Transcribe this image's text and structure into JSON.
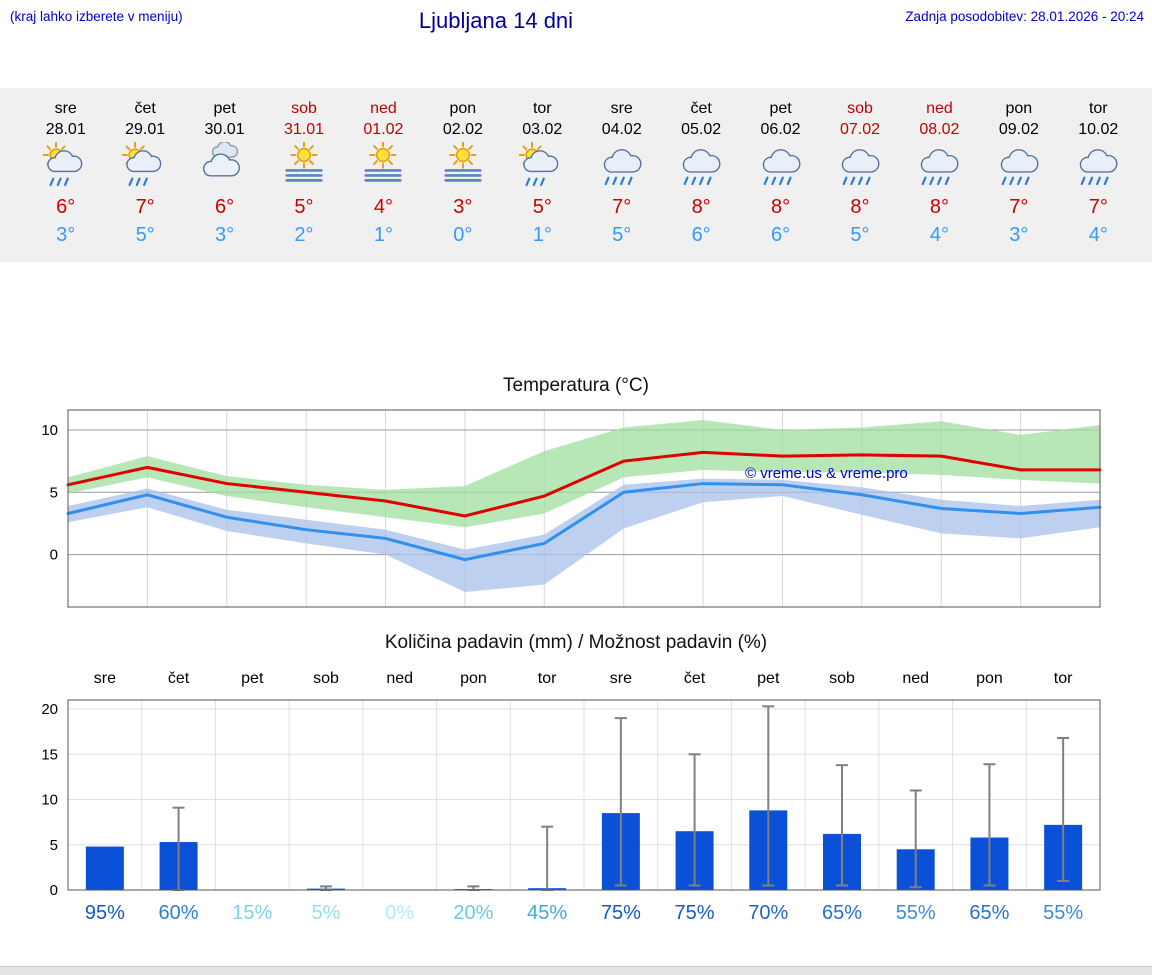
{
  "header": {
    "note": "(kraj lahko izberete v meniju)",
    "title": "Ljubljana 14 dni",
    "updated": "Zadnja posodobitev: 28.01.2026 - 20:24"
  },
  "colors": {
    "accent_blue": "#0000cc",
    "title_blue": "#000099",
    "high_temp_red": "#cc0000",
    "low_temp_blue": "#3399ff",
    "weekend_red": "#c00000",
    "bar_blue": "#0b51d8",
    "temp_high_line": "#e10000",
    "temp_low_line": "#2f90f0",
    "band_green": "#9fdf9f",
    "band_blue": "#a8c0ea",
    "watermark_blue": "#0000cc",
    "whisker_gray": "#808080"
  },
  "forecast": {
    "days": [
      {
        "name": "sre",
        "date": "28.01",
        "weekend": false,
        "icon": "sun-cloud-rain",
        "high": "6°",
        "low": "3°"
      },
      {
        "name": "čet",
        "date": "29.01",
        "weekend": false,
        "icon": "sun-cloud-rain",
        "high": "7°",
        "low": "5°"
      },
      {
        "name": "pet",
        "date": "30.01",
        "weekend": false,
        "icon": "clouds",
        "high": "6°",
        "low": "3°"
      },
      {
        "name": "sob",
        "date": "31.01",
        "weekend": true,
        "icon": "sun-fog",
        "high": "5°",
        "low": "2°"
      },
      {
        "name": "ned",
        "date": "01.02",
        "weekend": true,
        "icon": "sun-fog",
        "high": "4°",
        "low": "1°"
      },
      {
        "name": "pon",
        "date": "02.02",
        "weekend": false,
        "icon": "sun-fog",
        "high": "3°",
        "low": "0°"
      },
      {
        "name": "tor",
        "date": "03.02",
        "weekend": false,
        "icon": "sun-cloud-rain",
        "high": "5°",
        "low": "1°"
      },
      {
        "name": "sre",
        "date": "04.02",
        "weekend": false,
        "icon": "cloud-rain",
        "high": "7°",
        "low": "5°"
      },
      {
        "name": "čet",
        "date": "05.02",
        "weekend": false,
        "icon": "cloud-rain",
        "high": "8°",
        "low": "6°"
      },
      {
        "name": "pet",
        "date": "06.02",
        "weekend": false,
        "icon": "cloud-rain",
        "high": "8°",
        "low": "6°"
      },
      {
        "name": "sob",
        "date": "07.02",
        "weekend": true,
        "icon": "cloud-rain",
        "high": "8°",
        "low": "5°"
      },
      {
        "name": "ned",
        "date": "08.02",
        "weekend": true,
        "icon": "cloud-rain",
        "high": "8°",
        "low": "4°"
      },
      {
        "name": "pon",
        "date": "09.02",
        "weekend": false,
        "icon": "cloud-rain",
        "high": "7°",
        "low": "3°"
      },
      {
        "name": "tor",
        "date": "10.02",
        "weekend": false,
        "icon": "cloud-rain",
        "high": "7°",
        "low": "4°"
      }
    ]
  },
  "chart_data": [
    {
      "type": "line",
      "title": "Temperatura (°C)",
      "categories": [
        "sre",
        "čet",
        "pet",
        "sob",
        "ned",
        "pon",
        "tor",
        "sre",
        "čet",
        "pet",
        "sob",
        "ned",
        "pon",
        "tor"
      ],
      "yticks": [
        0,
        5,
        10
      ],
      "ylim": [
        -4.2,
        11.6
      ],
      "grid": true,
      "legend": "none",
      "series": [
        {
          "name": "max-temperature",
          "color": "#e10000",
          "values": [
            5.6,
            7.0,
            5.7,
            5.0,
            4.3,
            3.1,
            4.7,
            7.5,
            8.2,
            7.9,
            8.0,
            7.9,
            6.8,
            6.8
          ]
        },
        {
          "name": "min-temperature",
          "color": "#2f90f0",
          "values": [
            3.3,
            4.8,
            3.0,
            2.0,
            1.3,
            -0.4,
            0.9,
            5.0,
            5.7,
            5.6,
            4.8,
            3.7,
            3.3,
            3.8
          ]
        }
      ],
      "bands": [
        {
          "name": "max-range",
          "color": "#9fdf9f",
          "upper": [
            6.2,
            7.9,
            6.3,
            5.6,
            5.2,
            5.5,
            8.3,
            10.2,
            10.8,
            10.0,
            10.2,
            10.7,
            9.6,
            10.4
          ],
          "lower": [
            4.9,
            6.2,
            4.7,
            3.8,
            3.0,
            2.2,
            3.3,
            6.2,
            6.8,
            6.6,
            6.6,
            6.4,
            6.0,
            5.7
          ]
        },
        {
          "name": "min-range",
          "color": "#a8c0ea",
          "upper": [
            3.9,
            5.3,
            3.6,
            2.8,
            2.0,
            0.4,
            1.6,
            5.6,
            6.1,
            6.0,
            5.4,
            4.4,
            3.9,
            4.4
          ],
          "lower": [
            2.6,
            3.8,
            1.9,
            0.9,
            0.0,
            -3.0,
            -2.4,
            2.1,
            4.2,
            4.7,
            3.2,
            1.7,
            1.3,
            2.2
          ]
        }
      ],
      "annotation": "© vreme.us & vreme.pro"
    },
    {
      "type": "bar",
      "title": "Količina padavin (mm) / Možnost padavin (%)",
      "categories": [
        "sre",
        "čet",
        "pet",
        "sob",
        "ned",
        "pon",
        "tor",
        "sre",
        "čet",
        "pet",
        "sob",
        "ned",
        "pon",
        "tor"
      ],
      "values": [
        4.8,
        5.3,
        0.05,
        0.15,
        0.0,
        0.1,
        0.2,
        8.5,
        6.5,
        8.8,
        6.2,
        4.5,
        5.8,
        7.2
      ],
      "range_low": [
        null,
        0,
        null,
        0,
        null,
        0,
        0,
        0.5,
        0.5,
        0.5,
        0.5,
        0.3,
        0.5,
        1.0
      ],
      "range_high": [
        null,
        9.1,
        null,
        0.4,
        null,
        0.4,
        7.0,
        19.0,
        15.0,
        20.3,
        13.8,
        11.0,
        13.9,
        16.8
      ],
      "probabilities": [
        "95%",
        "60%",
        "15%",
        "5%",
        "0%",
        "20%",
        "45%",
        "75%",
        "75%",
        "70%",
        "65%",
        "55%",
        "65%",
        "55%"
      ],
      "probability_colors": [
        "#1459c8",
        "#2e7fd2",
        "#7cd4e6",
        "#95e0ec",
        "#b2ecf4",
        "#6cc9e2",
        "#44a9da",
        "#1459c8",
        "#1459c8",
        "#1c66cc",
        "#2472ce",
        "#3a8cd6",
        "#2472ce",
        "#3a8cd6"
      ],
      "yticks": [
        0,
        5,
        10,
        15,
        20
      ],
      "ylim": [
        0,
        21
      ],
      "grid": true
    }
  ]
}
